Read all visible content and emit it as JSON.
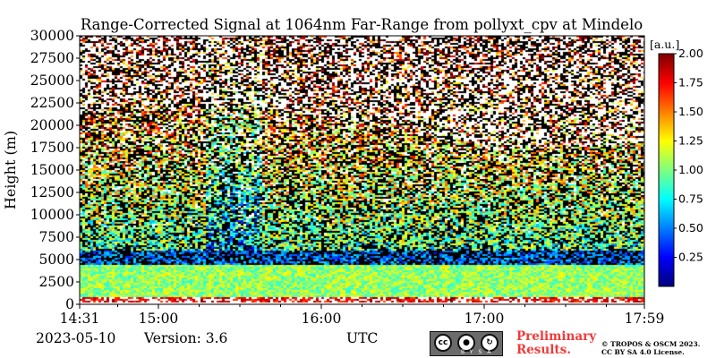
{
  "chart_data": {
    "type": "heatmap",
    "title": "Range-Corrected Signal at 1064nm Far-Range from pollyxt_cpv at Mindelo",
    "ylabel": "Height (m)",
    "x_ticks": [
      "14:31",
      "15:00",
      "16:00",
      "17:00",
      "17:59"
    ],
    "x_range": [
      "14:31",
      "17:59"
    ],
    "y_ticks": [
      0,
      2500,
      5000,
      7500,
      10000,
      12500,
      15000,
      17500,
      20000,
      22500,
      25000,
      27500,
      30000
    ],
    "ylim": [
      0,
      30000
    ],
    "colorbar": {
      "unit": "[a.u.]",
      "range": [
        0,
        2.0
      ],
      "ticks": [
        "0.25",
        "0.50",
        "0.75",
        "1.00",
        "1.25",
        "1.50",
        "1.75",
        "2.00"
      ],
      "colormap": "jet"
    },
    "grid": false
  },
  "footer": {
    "date": "2023-05-10",
    "version": "Version: 3.6",
    "xunit": "UTC",
    "preliminary_line1": "Preliminary",
    "preliminary_line2": "Results.",
    "copyright_line1": "© TROPOS & OSCM 2023.",
    "copyright_line2": "CC BY SA 4.0 License.",
    "license_badge": {
      "cc": "cc",
      "by": "BY",
      "sa": "SA"
    }
  }
}
